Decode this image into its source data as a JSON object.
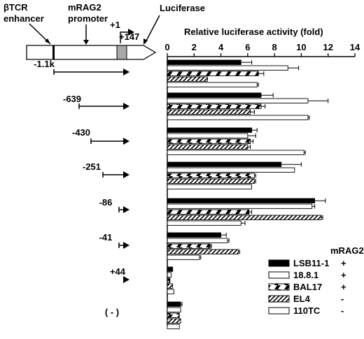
{
  "construct": {
    "enhancer_label": "βTCR\nenhancer",
    "promoter_label": "mRAG2\npromoter",
    "luciferase_label": "Luciferase",
    "tss_label": "+1",
    "end_label": "+147"
  },
  "chart_data": {
    "type": "bar",
    "orientation": "horizontal",
    "title": "Relative luciferase activity (fold)",
    "xlabel": "Relative luciferase activity (fold)",
    "xlim": [
      0,
      14
    ],
    "xticks": [
      0,
      2,
      4,
      6,
      8,
      10,
      12,
      14
    ],
    "categories": [
      "-1.1k",
      "-639",
      "-430",
      "-251",
      "-86",
      "-41",
      "+44",
      "( - )"
    ],
    "series": [
      {
        "name": "LSB11-1",
        "pattern": "solid-black",
        "values": [
          5.5,
          7.0,
          6.3,
          8.5,
          11.0,
          4.0,
          0.4,
          1.0
        ],
        "errors": [
          0.8,
          0.9,
          0.4,
          1.5,
          0.8,
          0.4,
          0,
          0.1
        ]
      },
      {
        "name": "18.8.1",
        "pattern": "white",
        "values": [
          9.0,
          10.5,
          6.0,
          9.5,
          10.8,
          4.5,
          0.3,
          1.0
        ],
        "errors": [
          0.8,
          1.5,
          0.6,
          0,
          0.2,
          0.1,
          0,
          0
        ]
      },
      {
        "name": "BAL17",
        "pattern": "black-white-dash",
        "values": [
          6.8,
          7.0,
          6.2,
          6.5,
          6.1,
          3.2,
          0.2,
          0.9
        ],
        "errors": [
          0.4,
          0.3,
          0.2,
          0.1,
          0.2,
          0.1,
          0,
          0
        ]
      },
      {
        "name": "EL4",
        "pattern": "diagonal-hatch",
        "values": [
          3.0,
          6.2,
          6.0,
          6.5,
          11.5,
          5.3,
          0.4,
          1.0
        ],
        "errors": [
          0,
          0.3,
          0.2,
          0.1,
          0.1,
          0.1,
          0,
          0
        ]
      },
      {
        "name": "110TC",
        "pattern": "white",
        "values": [
          6.7,
          10.5,
          10.2,
          6.3,
          5.5,
          2.4,
          0.5,
          0.9
        ],
        "errors": [
          0.1,
          0.1,
          0.1,
          0,
          0.3,
          0.1,
          0,
          0
        ]
      }
    ],
    "legend": {
      "header": "mRAG2",
      "entries": [
        {
          "name": "LSB11-1",
          "sign": "+"
        },
        {
          "name": "18.8.1",
          "sign": "+"
        },
        {
          "name": "BAL17",
          "sign": "+"
        },
        {
          "name": "EL4",
          "sign": "-"
        },
        {
          "name": "110TC",
          "sign": "-"
        }
      ],
      "position": "bottom-right"
    },
    "grid": false
  }
}
